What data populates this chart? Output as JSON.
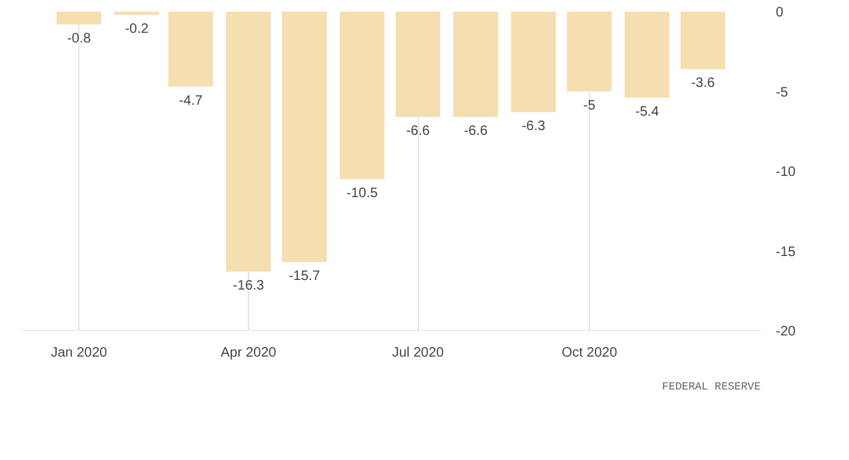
{
  "chart_data": {
    "type": "bar",
    "x": [
      "2020-01",
      "2020-02",
      "2020-03",
      "2020-04",
      "2020-05",
      "2020-06",
      "2020-07",
      "2020-08",
      "2020-09",
      "2020-10",
      "2020-11",
      "2020-12"
    ],
    "values": [
      -0.8,
      -0.2,
      -4.7,
      -16.3,
      -15.7,
      -10.5,
      -6.6,
      -6.6,
      -6.3,
      -5,
      -5.4,
      -3.6
    ],
    "color": "#f5deb0",
    "data_labels": true,
    "xlim": [
      "2019-12-01",
      "2021-01-01"
    ],
    "xticks": [
      {
        "value": "2020-01",
        "label": "Jan 2020"
      },
      {
        "value": "2020-04",
        "label": "Apr 2020"
      },
      {
        "value": "2020-07",
        "label": "Jul 2020"
      },
      {
        "value": "2020-10",
        "label": "Oct 2020"
      }
    ],
    "ylim": [
      -20,
      0
    ],
    "yticks": [
      0,
      -5,
      -10,
      -15,
      -20
    ],
    "grid": "x",
    "annotations": [
      "FEDERAL RESERVE"
    ]
  }
}
